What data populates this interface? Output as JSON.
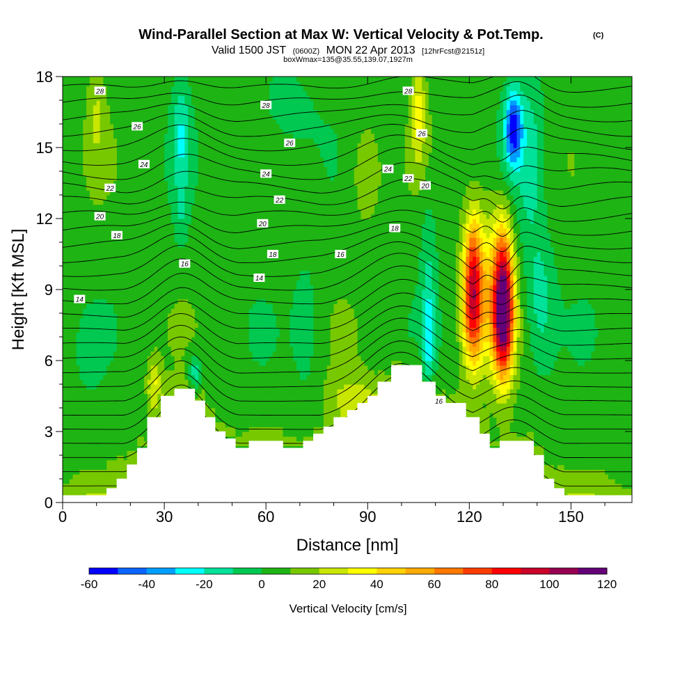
{
  "title": {
    "main": "Wind-Parallel Section at Max W: Vertical Velocity & Pot.Temp.",
    "copyright": "(C)",
    "line2_a": "Valid 1500 JST",
    "line2_b": "(0600Z)",
    "line2_c": "MON 22 Apr 2013",
    "line2_d": "[12hrFcst@2151z]",
    "line3": "boxWmax=135@35.55,139.07,1927m"
  },
  "colors": {
    "terrain": "#ffffff",
    "contour": "#000000",
    "palette": [
      "#0000ff",
      "#0b64ff",
      "#009fff",
      "#00ffff",
      "#00e29a",
      "#00c850",
      "#1eb414",
      "#78c800",
      "#c8e600",
      "#ffff00",
      "#ffd200",
      "#ffaa00",
      "#ff7800",
      "#ff3c00",
      "#ff0000",
      "#c80028",
      "#960050",
      "#640078"
    ]
  },
  "chart_data": {
    "type": "heatmap",
    "xlabel": "Distance [nm]",
    "ylabel": "Height [Kft MSL]",
    "xlim": [
      0,
      168
    ],
    "ylim": [
      0,
      18
    ],
    "x_ticks": [
      0,
      30,
      60,
      90,
      120,
      150
    ],
    "x_tick_labels": [
      "0",
      "30",
      "60",
      "90",
      "120",
      "150"
    ],
    "y_ticks": [
      0,
      3,
      6,
      9,
      12,
      15,
      18
    ],
    "y_tick_labels": [
      "0",
      "3",
      "6",
      "9",
      "12",
      "15",
      "18"
    ],
    "colorbar": {
      "title": "Vertical Velocity [cm/s]",
      "levels": [
        -60,
        -50,
        -40,
        -30,
        -20,
        -10,
        0,
        10,
        20,
        30,
        40,
        50,
        60,
        70,
        80,
        90,
        100,
        110,
        120
      ],
      "tick_values": [
        -60,
        -40,
        -20,
        0,
        20,
        40,
        60,
        80,
        100,
        120
      ],
      "tick_labels": [
        "-60",
        "-40",
        "-20",
        "0",
        "20",
        "40",
        "60",
        "80",
        "100",
        "120"
      ]
    },
    "terrain": [
      [
        0,
        0.3
      ],
      [
        13,
        0.3
      ],
      [
        13,
        0.6
      ],
      [
        16,
        0.6
      ],
      [
        16,
        1.0
      ],
      [
        19,
        1.0
      ],
      [
        19,
        1.6
      ],
      [
        22,
        1.6
      ],
      [
        22,
        2.3
      ],
      [
        25,
        2.3
      ],
      [
        25,
        3.6
      ],
      [
        29,
        3.6
      ],
      [
        29,
        4.5
      ],
      [
        33,
        4.5
      ],
      [
        33,
        4.8
      ],
      [
        39,
        4.8
      ],
      [
        39,
        4.3
      ],
      [
        42,
        4.3
      ],
      [
        42,
        3.6
      ],
      [
        45,
        3.6
      ],
      [
        45,
        3.0
      ],
      [
        48,
        3.0
      ],
      [
        48,
        2.7
      ],
      [
        51,
        2.7
      ],
      [
        51,
        2.3
      ],
      [
        55,
        2.3
      ],
      [
        55,
        2.6
      ],
      [
        65,
        2.6
      ],
      [
        65,
        2.3
      ],
      [
        71,
        2.3
      ],
      [
        71,
        2.6
      ],
      [
        74,
        2.6
      ],
      [
        74,
        2.9
      ],
      [
        77,
        2.9
      ],
      [
        77,
        3.2
      ],
      [
        80,
        3.2
      ],
      [
        80,
        3.6
      ],
      [
        84,
        3.6
      ],
      [
        84,
        3.9
      ],
      [
        87,
        3.9
      ],
      [
        87,
        4.2
      ],
      [
        90,
        4.2
      ],
      [
        90,
        4.5
      ],
      [
        93,
        4.5
      ],
      [
        93,
        5.1
      ],
      [
        97,
        5.1
      ],
      [
        97,
        5.8
      ],
      [
        106,
        5.8
      ],
      [
        106,
        5.1
      ],
      [
        110,
        5.1
      ],
      [
        110,
        4.5
      ],
      [
        113,
        4.5
      ],
      [
        113,
        4.2
      ],
      [
        119,
        4.2
      ],
      [
        119,
        3.6
      ],
      [
        123,
        3.6
      ],
      [
        123,
        2.9
      ],
      [
        126,
        2.9
      ],
      [
        126,
        2.3
      ],
      [
        129,
        2.3
      ],
      [
        129,
        2.6
      ],
      [
        139,
        2.6
      ],
      [
        139,
        2.0
      ],
      [
        142,
        2.0
      ],
      [
        142,
        1.0
      ],
      [
        145,
        1.0
      ],
      [
        145,
        0.6
      ],
      [
        148,
        0.6
      ],
      [
        148,
        0.3
      ],
      [
        168,
        0.3
      ]
    ],
    "features": [
      {
        "x": 130,
        "z": 8.0,
        "sx": 3.0,
        "sz": 2.6,
        "amp": 115
      },
      {
        "x": 121,
        "z": 8.5,
        "sx": 3.0,
        "sz": 2.6,
        "amp": 78
      },
      {
        "x": 125.5,
        "z": 9.5,
        "sx": 5.5,
        "sz": 3.5,
        "amp": 25
      },
      {
        "x": 130,
        "z": 10.8,
        "sx": 2.5,
        "sz": 1.8,
        "amp": 20
      },
      {
        "x": 121,
        "z": 11.0,
        "sx": 2.2,
        "sz": 1.8,
        "amp": 20
      },
      {
        "x": 133,
        "z": 15.8,
        "sx": 2.5,
        "sz": 1.6,
        "amp": -58
      },
      {
        "x": 138,
        "z": 14.5,
        "sx": 4.0,
        "sz": 4.0,
        "amp": -18
      },
      {
        "x": 141,
        "z": 8.5,
        "sx": 4.0,
        "sz": 2.8,
        "amp": -18
      },
      {
        "x": 108,
        "z": 7.0,
        "sx": 1.8,
        "sz": 2.2,
        "amp": -30
      },
      {
        "x": 108,
        "z": 11.0,
        "sx": 2.5,
        "sz": 2.5,
        "amp": -12
      },
      {
        "x": 35,
        "z": 15.5,
        "sx": 2.5,
        "sz": 2.5,
        "amp": -22
      },
      {
        "x": 35,
        "z": 12.0,
        "sx": 2.0,
        "sz": 1.5,
        "amp": -10
      },
      {
        "x": 39,
        "z": 5.5,
        "sx": 2.0,
        "sz": 0.8,
        "amp": -25
      },
      {
        "x": 65,
        "z": 16.5,
        "sx": 9,
        "sz": 2.0,
        "amp": -10
      },
      {
        "x": 72,
        "z": 7.5,
        "sx": 4,
        "sz": 3.0,
        "amp": -10
      },
      {
        "x": 8,
        "z": 6.3,
        "sx": 3,
        "sz": 1.2,
        "amp": -10
      },
      {
        "x": 105,
        "z": 16.5,
        "sx": 2.0,
        "sz": 2.0,
        "amp": 28
      },
      {
        "x": 89,
        "z": 14.0,
        "sx": 5,
        "sz": 2.5,
        "amp": 13
      },
      {
        "x": 85,
        "z": 4.5,
        "sx": 7,
        "sz": 1.0,
        "amp": 15
      },
      {
        "x": 27,
        "z": 5.0,
        "sx": 2.0,
        "sz": 1.0,
        "amp": 25
      },
      {
        "x": 10,
        "z": 16.5,
        "sx": 2.5,
        "sz": 2.5,
        "amp": 13
      },
      {
        "x": 157,
        "z": 15.0,
        "sx": 4,
        "sz": 2.0,
        "amp": -8
      }
    ],
    "contour_labels": [
      {
        "x": 11,
        "z": 17.4,
        "text": "28"
      },
      {
        "x": 60,
        "z": 16.8,
        "text": "28"
      },
      {
        "x": 102,
        "z": 17.4,
        "text": "28"
      },
      {
        "x": 22,
        "z": 15.9,
        "text": "26"
      },
      {
        "x": 67,
        "z": 15.2,
        "text": "26"
      },
      {
        "x": 106,
        "z": 15.6,
        "text": "26"
      },
      {
        "x": 24,
        "z": 14.3,
        "text": "24"
      },
      {
        "x": 60,
        "z": 13.9,
        "text": "24"
      },
      {
        "x": 96,
        "z": 14.1,
        "text": "24"
      },
      {
        "x": 14,
        "z": 13.3,
        "text": "22"
      },
      {
        "x": 64,
        "z": 12.8,
        "text": "22"
      },
      {
        "x": 102,
        "z": 13.7,
        "text": "22"
      },
      {
        "x": 11,
        "z": 12.1,
        "text": "20"
      },
      {
        "x": 59,
        "z": 11.8,
        "text": "20"
      },
      {
        "x": 107,
        "z": 13.4,
        "text": "20"
      },
      {
        "x": 16,
        "z": 11.3,
        "text": "18"
      },
      {
        "x": 62,
        "z": 10.5,
        "text": "18"
      },
      {
        "x": 98,
        "z": 11.6,
        "text": "18"
      },
      {
        "x": 36,
        "z": 10.1,
        "text": "16"
      },
      {
        "x": 82,
        "z": 10.5,
        "text": "16"
      },
      {
        "x": 111,
        "z": 4.3,
        "text": "16"
      },
      {
        "x": 5,
        "z": 8.6,
        "text": "14"
      },
      {
        "x": 58,
        "z": 9.5,
        "text": "14"
      }
    ]
  }
}
